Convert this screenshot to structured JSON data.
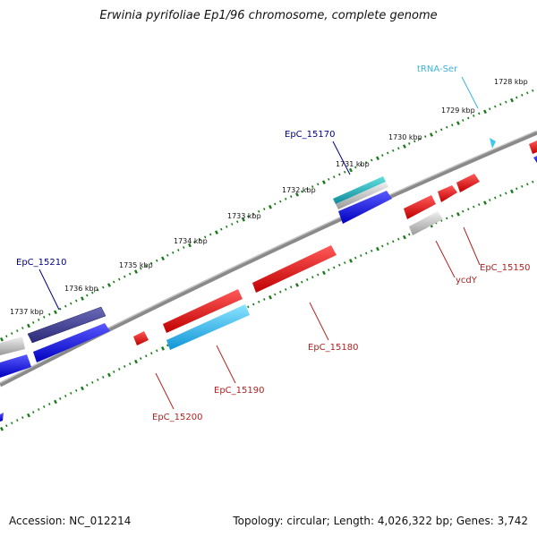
{
  "title": "Erwinia pyrifoliae Ep1/96 chromosome, complete genome",
  "footer": {
    "accession": "Accession: NC_012214",
    "topology": "Topology: circular; Length: 4,026,322 bp; Genes: 3,742"
  },
  "colors": {
    "backbone": "#8a8a8a",
    "tick": "#1a7a1a",
    "tick_label": "#111111",
    "forward_label": "#00008b",
    "reverse_label": "#b22222",
    "trna_label": "#3cb4dc"
  },
  "kbp_ticks": [
    "1728 kbp",
    "1729 kbp",
    "1730 kbp",
    "1731 kbp",
    "1732 kbp",
    "1733 kbp",
    "1734 kbp",
    "1735 kbp",
    "1736 kbp",
    "1737 kbp"
  ],
  "genes": [
    {
      "name": "tRNA-Ser",
      "strand": "+",
      "color": "#3cc8f0",
      "type": "tRNA"
    },
    {
      "name": "EpC_15170",
      "strand": "+",
      "color": "#1a1ae0",
      "type": "CDS"
    },
    {
      "name": "EpC_15210",
      "strand": "+",
      "color": "#3a3a9a",
      "type": "CDS"
    },
    {
      "name": "EpC_15150",
      "strand": "-",
      "color": "#e81010",
      "type": "CDS"
    },
    {
      "name": "ycdY",
      "strand": "-",
      "color": "#e81010",
      "type": "CDS"
    },
    {
      "name": "EpC_15180",
      "strand": "-",
      "color": "#e81010",
      "type": "CDS"
    },
    {
      "name": "EpC_15190",
      "strand": "-",
      "color": "#22b8ee",
      "type": "CDS"
    },
    {
      "name": "EpC_15200",
      "strand": "-",
      "color": "#e81010",
      "type": "CDS"
    }
  ]
}
